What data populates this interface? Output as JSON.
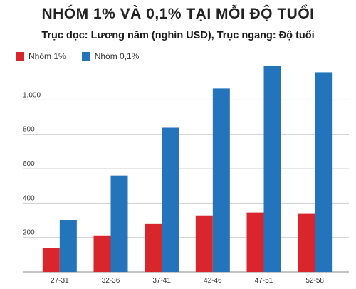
{
  "title": "NHÓM 1% VÀ 0,1% TẠI MỖI ĐỘ TUỔI",
  "subtitle": "Trục dọc: Lương năm (nghìn USD), Trục ngang: Độ tuổi",
  "colors": {
    "series1": "#d9262c",
    "series2": "#2374bb",
    "grid": "#cfcfcf",
    "axis": "#888888"
  },
  "chart_data": {
    "type": "bar",
    "categories": [
      "27-31",
      "32-36",
      "37-41",
      "42-46",
      "47-51",
      "52-58"
    ],
    "series": [
      {
        "name": "Nhóm 1%",
        "values": [
          140,
          212,
          282,
          328,
          345,
          341
        ]
      },
      {
        "name": "Nhóm 0,1%",
        "values": [
          302,
          560,
          838,
          1066,
          1196,
          1161
        ]
      }
    ],
    "yticks": [
      200,
      400,
      600,
      800,
      1000
    ],
    "ytick_labels": [
      "200",
      "400",
      "600",
      "800",
      "1,000"
    ],
    "ylim": [
      0,
      1200
    ],
    "grid": true,
    "legend_position": "top-left"
  }
}
